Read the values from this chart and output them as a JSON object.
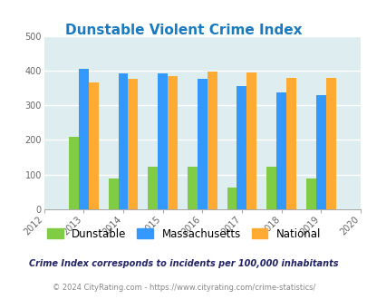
{
  "title": "Dunstable Violent Crime Index",
  "years": [
    2013,
    2014,
    2015,
    2016,
    2017,
    2018,
    2019
  ],
  "dunstable": [
    210,
    90,
    122,
    122,
    62,
    122,
    90
  ],
  "massachusetts": [
    405,
    393,
    393,
    375,
    355,
    337,
    328
  ],
  "national": [
    367,
    377,
    384,
    397,
    394,
    380,
    380
  ],
  "color_dunstable": "#80cc44",
  "color_massachusetts": "#3399ff",
  "color_national": "#ffaa33",
  "color_title": "#1a7abf",
  "color_bg": "#deedf0",
  "ylim": [
    0,
    500
  ],
  "yticks": [
    0,
    100,
    200,
    300,
    400,
    500
  ],
  "xlim": [
    2012,
    2020
  ],
  "xticks": [
    2012,
    2013,
    2014,
    2015,
    2016,
    2017,
    2018,
    2019,
    2020
  ],
  "legend_labels": [
    "Dunstable",
    "Massachusetts",
    "National"
  ],
  "footnote1": "Crime Index corresponds to incidents per 100,000 inhabitants",
  "footnote2": "© 2024 CityRating.com - https://www.cityrating.com/crime-statistics/",
  "footnote1_color": "#222266",
  "footnote2_color": "#888888",
  "bar_width": 0.25
}
